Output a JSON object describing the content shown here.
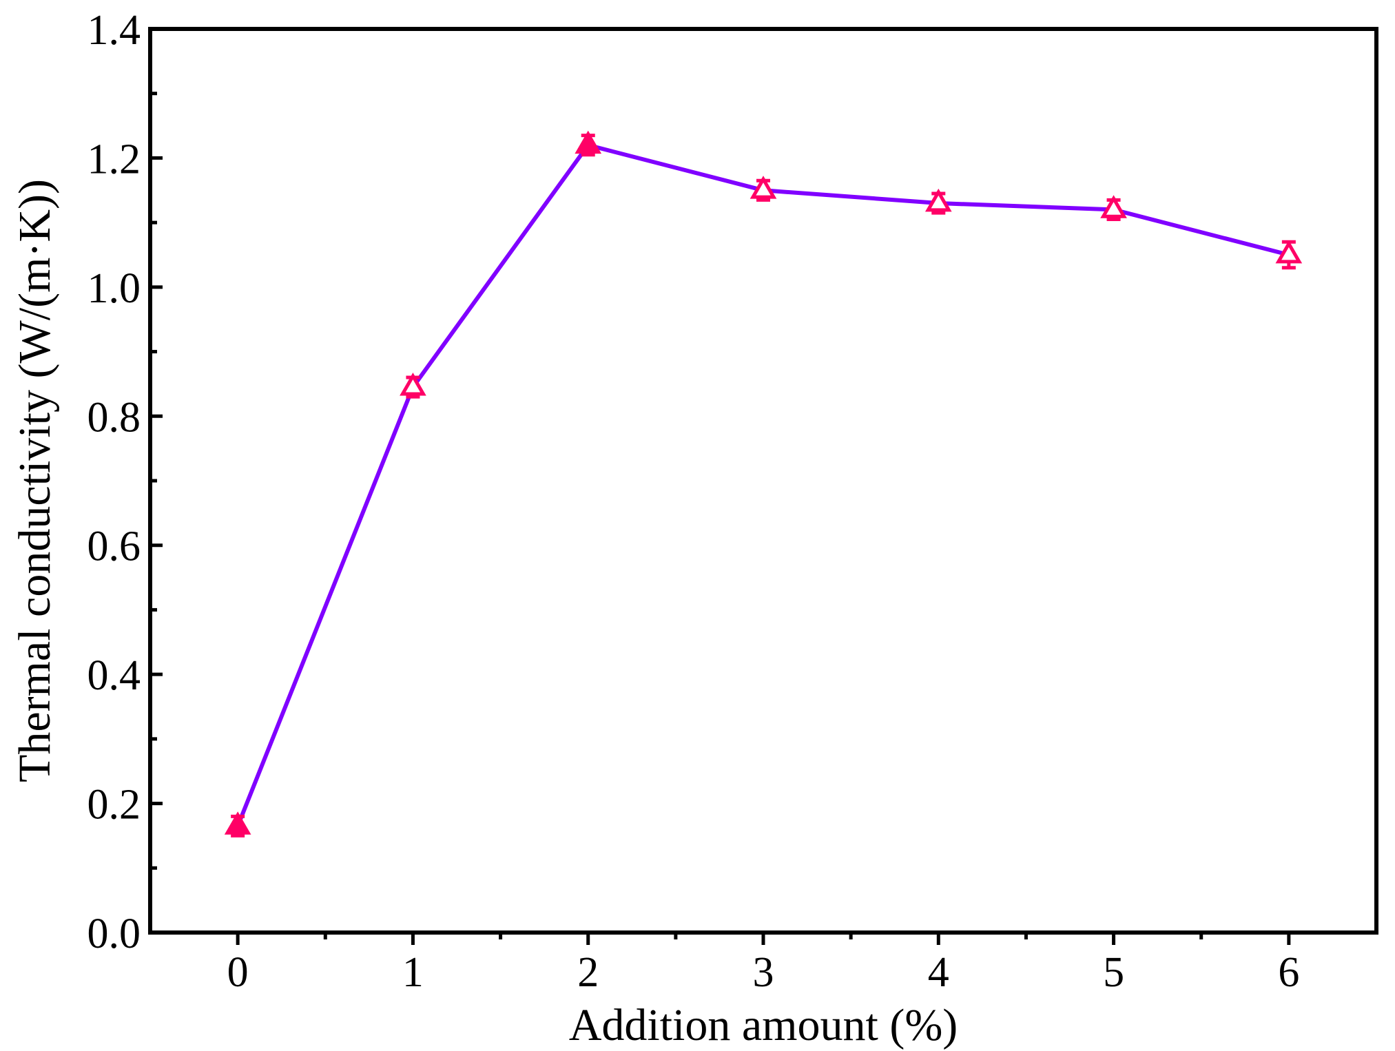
{
  "chart_data": {
    "type": "line",
    "xlabel": "Addition amount (%)",
    "ylabel": "Thermal conductivity (W/(m·K))",
    "xlim": [
      -0.5,
      6.5
    ],
    "ylim": [
      0.0,
      1.4
    ],
    "xticks": [
      0,
      1,
      2,
      3,
      4,
      5,
      6
    ],
    "xtick_labels": [
      "0",
      "1",
      "2",
      "3",
      "4",
      "5",
      "6"
    ],
    "yticks": [
      0.0,
      0.2,
      0.4,
      0.6,
      0.8,
      1.0,
      1.2,
      1.4
    ],
    "ytick_labels": [
      "0.0",
      "0.2",
      "0.4",
      "0.6",
      "0.8",
      "1.0",
      "1.2",
      "1.4"
    ],
    "grid": false,
    "line_color": "#8000ff",
    "marker_color": "#ff0066",
    "series": [
      {
        "x": [
          0,
          1,
          2,
          3,
          4,
          5,
          6
        ],
        "values": [
          0.165,
          0.845,
          1.22,
          1.15,
          1.13,
          1.12,
          1.05
        ],
        "error": [
          0.015,
          0.015,
          0.015,
          0.015,
          0.015,
          0.015,
          0.02
        ],
        "marker": [
          "filled-triangle",
          "open-triangle",
          "filled-triangle",
          "open-triangle",
          "open-triangle",
          "open-triangle",
          "open-triangle"
        ]
      }
    ]
  }
}
